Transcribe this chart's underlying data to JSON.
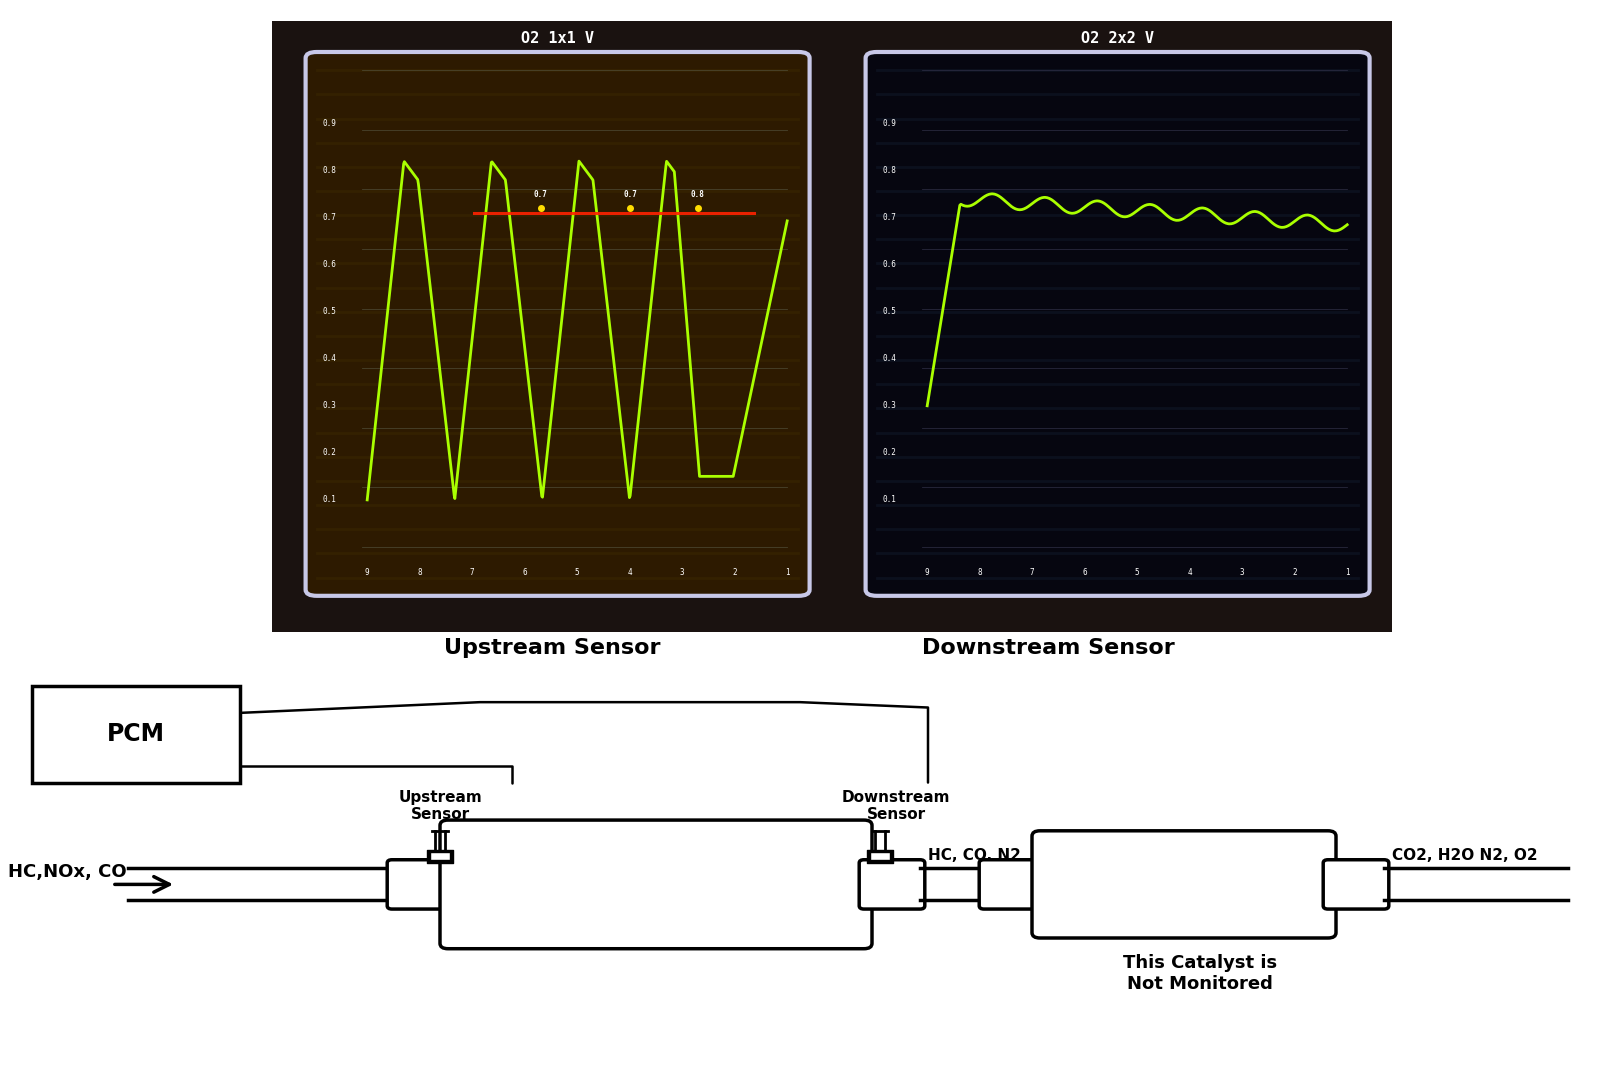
{
  "upstream_label": "O2 1x1 V",
  "downstream_label": "O2 2x2 V",
  "upstream_sensor_label": "Upstream Sensor",
  "downstream_sensor_label": "Downstream Sensor",
  "upstream_sensor_sublabel": "Upstream\nSensor",
  "downstream_sensor_sublabel": "Downstream\nSensor",
  "pcm_label": "PCM",
  "hc_nox_co_label": "HC,NOx, CO",
  "hc_co_n2_label": "HC, CO, N2",
  "co2_h2o_label": "CO2, H2O N2, O2",
  "catalyst_note": "This Catalyst is\nNot Monitored",
  "green_line": "#aaff00",
  "red_line": "#ff2200",
  "yellow_line": "#ffdd00",
  "outer_bg": "#1a1210",
  "left_screen_bg": "#2d1a00",
  "right_screen_bg": "#060610",
  "screen_border": "#c8c8e8",
  "scan_line_left": "#3a2500",
  "scan_line_right": "#101025"
}
